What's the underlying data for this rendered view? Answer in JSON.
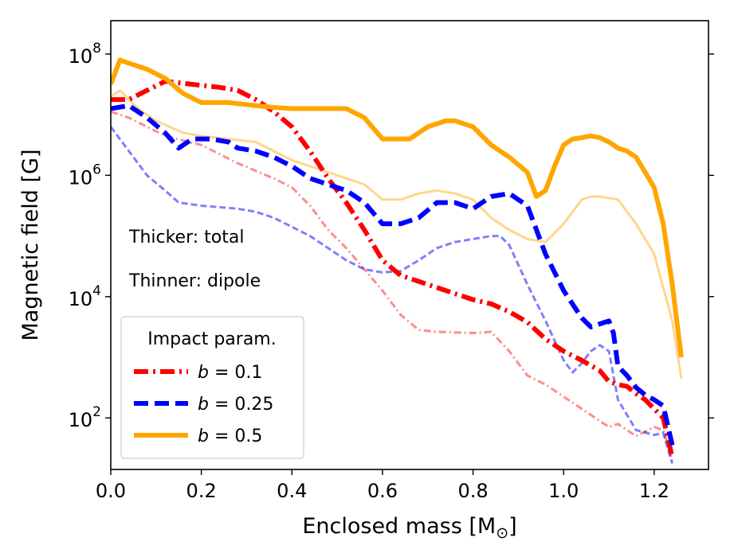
{
  "chart_data": {
    "type": "line",
    "title": "",
    "xlabel": "Enclosed mass [M",
    "xlabel_sub": "⊙",
    "xlabel_end": "]",
    "ylabel": "Magnetic field [G]",
    "xlim": [
      0.0,
      1.32
    ],
    "ylim_log10": [
      1.15,
      8.55
    ],
    "y_scale": "log",
    "x_ticks": [
      0.0,
      0.2,
      0.4,
      0.6,
      0.8,
      1.0,
      1.2
    ],
    "x_tick_labels": [
      "0.0",
      "0.2",
      "0.4",
      "0.6",
      "0.8",
      "1.0",
      "1.2"
    ],
    "y_ticks_log10": [
      2,
      4,
      6,
      8
    ],
    "y_tick_base": "10",
    "y_tick_exps": [
      "2",
      "4",
      "6",
      "8"
    ],
    "annotations": [
      "Thicker: total",
      "Thinner: dipole"
    ],
    "legend": {
      "title": "Impact param.",
      "position": "lower-left",
      "entries": [
        {
          "prefix": "b",
          "text": " = 0.1",
          "color": "#ff0000",
          "dash": "dashdot"
        },
        {
          "prefix": "b",
          "text": " = 0.25",
          "color": "#0000ff",
          "dash": "dashed"
        },
        {
          "prefix": "b",
          "text": " = 0.5",
          "color": "#ffa500",
          "dash": "solid"
        }
      ]
    },
    "series": [
      {
        "name": "b=0.1 total",
        "color": "#ff0000",
        "dash": "dashdot",
        "weight": "thick",
        "alpha": 1.0,
        "x": [
          0.0,
          0.04,
          0.08,
          0.12,
          0.18,
          0.24,
          0.28,
          0.32,
          0.36,
          0.4,
          0.44,
          0.48,
          0.52,
          0.56,
          0.6,
          0.64,
          0.68,
          0.72,
          0.76,
          0.8,
          0.84,
          0.88,
          0.92,
          0.96,
          1.0,
          1.04,
          1.08,
          1.1,
          1.12,
          1.14,
          1.16,
          1.18,
          1.2,
          1.22,
          1.24
        ],
        "y": [
          7.25,
          7.25,
          7.4,
          7.55,
          7.5,
          7.45,
          7.4,
          7.25,
          7.05,
          6.8,
          6.4,
          5.95,
          5.55,
          5.1,
          4.6,
          4.35,
          4.25,
          4.15,
          4.05,
          3.95,
          3.88,
          3.75,
          3.58,
          3.3,
          3.1,
          2.95,
          2.78,
          2.6,
          2.55,
          2.52,
          2.4,
          2.3,
          2.15,
          2.0,
          1.35
        ]
      },
      {
        "name": "b=0.1 dipole",
        "color": "#ff0000",
        "dash": "dashdot",
        "weight": "thin",
        "alpha": 0.45,
        "x": [
          0.0,
          0.04,
          0.08,
          0.12,
          0.2,
          0.28,
          0.36,
          0.4,
          0.44,
          0.48,
          0.52,
          0.56,
          0.6,
          0.64,
          0.68,
          0.72,
          0.8,
          0.84,
          0.88,
          0.92,
          0.96,
          1.0,
          1.04,
          1.08,
          1.1,
          1.12,
          1.14,
          1.16,
          1.2,
          1.22,
          1.24
        ],
        "y": [
          7.05,
          6.95,
          6.8,
          6.65,
          6.5,
          6.2,
          5.95,
          5.8,
          5.5,
          5.1,
          4.8,
          4.45,
          4.1,
          3.7,
          3.45,
          3.42,
          3.4,
          3.42,
          3.1,
          2.7,
          2.55,
          2.35,
          2.15,
          1.95,
          1.85,
          1.9,
          1.8,
          1.7,
          1.85,
          1.8,
          1.3
        ]
      },
      {
        "name": "b=0.25 total",
        "color": "#0000ff",
        "dash": "dashed",
        "weight": "thick",
        "alpha": 1.0,
        "x": [
          0.0,
          0.04,
          0.08,
          0.12,
          0.15,
          0.18,
          0.22,
          0.26,
          0.28,
          0.32,
          0.36,
          0.4,
          0.44,
          0.48,
          0.52,
          0.56,
          0.6,
          0.64,
          0.68,
          0.72,
          0.76,
          0.8,
          0.84,
          0.88,
          0.92,
          0.96,
          1.0,
          1.04,
          1.06,
          1.08,
          1.1,
          1.11,
          1.12,
          1.14,
          1.16,
          1.18,
          1.2,
          1.22,
          1.24
        ],
        "y": [
          7.1,
          7.15,
          6.95,
          6.7,
          6.45,
          6.6,
          6.6,
          6.55,
          6.45,
          6.4,
          6.3,
          6.15,
          5.95,
          5.85,
          5.75,
          5.55,
          5.2,
          5.2,
          5.3,
          5.55,
          5.55,
          5.45,
          5.65,
          5.7,
          5.5,
          4.7,
          4.1,
          3.65,
          3.5,
          3.55,
          3.6,
          3.4,
          2.85,
          2.7,
          2.5,
          2.38,
          2.3,
          2.2,
          1.55
        ]
      },
      {
        "name": "b=0.25 dipole",
        "color": "#0000ff",
        "dash": "dashed",
        "weight": "thin",
        "alpha": 0.5,
        "x": [
          0.0,
          0.04,
          0.08,
          0.12,
          0.15,
          0.2,
          0.28,
          0.32,
          0.36,
          0.4,
          0.44,
          0.48,
          0.52,
          0.56,
          0.6,
          0.64,
          0.68,
          0.72,
          0.76,
          0.8,
          0.84,
          0.86,
          0.88,
          0.92,
          0.96,
          1.0,
          1.02,
          1.04,
          1.06,
          1.08,
          1.1,
          1.12,
          1.14,
          1.16,
          1.2,
          1.22,
          1.24
        ],
        "y": [
          6.8,
          6.4,
          6.0,
          5.75,
          5.55,
          5.5,
          5.45,
          5.4,
          5.3,
          5.15,
          5.0,
          4.8,
          4.6,
          4.45,
          4.4,
          4.42,
          4.6,
          4.8,
          4.9,
          4.95,
          5.0,
          5.0,
          4.85,
          4.2,
          3.6,
          2.95,
          2.75,
          2.9,
          3.1,
          3.2,
          3.1,
          2.3,
          2.05,
          1.8,
          1.72,
          1.75,
          1.25
        ]
      },
      {
        "name": "b=0.5 total",
        "color": "#ffa500",
        "dash": "solid",
        "weight": "thick",
        "alpha": 1.0,
        "x": [
          0.0,
          0.02,
          0.04,
          0.08,
          0.12,
          0.16,
          0.2,
          0.26,
          0.32,
          0.36,
          0.4,
          0.44,
          0.48,
          0.52,
          0.56,
          0.6,
          0.64,
          0.66,
          0.7,
          0.74,
          0.76,
          0.8,
          0.84,
          0.88,
          0.92,
          0.94,
          0.96,
          0.98,
          1.0,
          1.02,
          1.04,
          1.06,
          1.08,
          1.1,
          1.12,
          1.14,
          1.16,
          1.18,
          1.2,
          1.22,
          1.24,
          1.26
        ],
        "y": [
          7.5,
          7.9,
          7.85,
          7.75,
          7.6,
          7.35,
          7.2,
          7.2,
          7.15,
          7.12,
          7.1,
          7.1,
          7.1,
          7.1,
          6.95,
          6.6,
          6.6,
          6.6,
          6.8,
          6.9,
          6.9,
          6.8,
          6.5,
          6.3,
          6.05,
          5.65,
          5.75,
          6.15,
          6.5,
          6.6,
          6.62,
          6.65,
          6.62,
          6.55,
          6.45,
          6.4,
          6.3,
          6.05,
          5.8,
          5.2,
          4.2,
          3.0
        ]
      },
      {
        "name": "b=0.5 dipole",
        "color": "#ffa500",
        "dash": "solid",
        "weight": "thin",
        "alpha": 0.45,
        "x": [
          0.0,
          0.02,
          0.06,
          0.1,
          0.16,
          0.2,
          0.26,
          0.32,
          0.36,
          0.4,
          0.44,
          0.48,
          0.52,
          0.56,
          0.6,
          0.64,
          0.68,
          0.72,
          0.76,
          0.8,
          0.84,
          0.88,
          0.92,
          0.96,
          1.0,
          1.04,
          1.06,
          1.08,
          1.12,
          1.16,
          1.2,
          1.24,
          1.26
        ],
        "y": [
          7.3,
          7.4,
          7.1,
          6.9,
          6.7,
          6.65,
          6.6,
          6.55,
          6.4,
          6.25,
          6.15,
          6.05,
          5.95,
          5.85,
          5.6,
          5.6,
          5.7,
          5.75,
          5.7,
          5.6,
          5.3,
          5.1,
          4.95,
          4.9,
          5.2,
          5.6,
          5.65,
          5.65,
          5.6,
          5.2,
          4.7,
          3.6,
          2.65
        ]
      }
    ]
  }
}
